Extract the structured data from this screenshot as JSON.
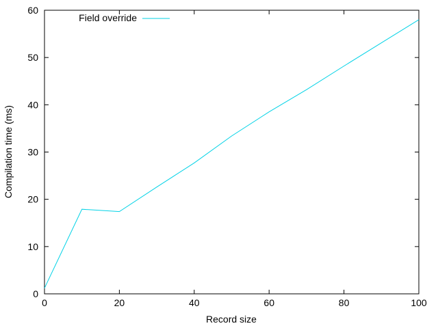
{
  "chart_data": {
    "type": "line",
    "xlabel": "Record size",
    "ylabel": "Compilation time (ms)",
    "xlim": [
      0,
      100
    ],
    "ylim": [
      0,
      60
    ],
    "x_ticks": [
      0,
      20,
      40,
      60,
      80,
      100
    ],
    "y_ticks": [
      0,
      10,
      20,
      30,
      40,
      50,
      60
    ],
    "grid": false,
    "legend_position": "top-left",
    "series": [
      {
        "name": "Field override",
        "color": "#00d2e6",
        "x": [
          0,
          10,
          20,
          30,
          40,
          50,
          60,
          70,
          80,
          90,
          100
        ],
        "y": [
          1.2,
          17.9,
          17.4,
          22.6,
          27.7,
          33.4,
          38.5,
          43.2,
          48.2,
          53.1,
          58.0
        ]
      }
    ]
  }
}
